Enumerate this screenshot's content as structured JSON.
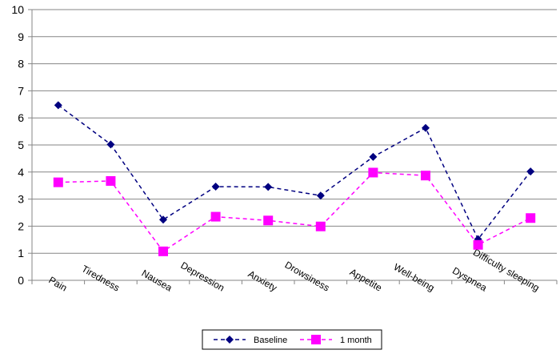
{
  "chart_data": {
    "type": "line",
    "title": "",
    "xlabel": "",
    "ylabel": "",
    "ylim": [
      0,
      10
    ],
    "yticks": [
      0,
      1,
      2,
      3,
      4,
      5,
      6,
      7,
      8,
      9,
      10
    ],
    "grid": true,
    "legend_position": "bottom",
    "categories": [
      "Pain",
      "Tiredness",
      "Nausea",
      "Depression",
      "Anxiety",
      "Drowsiness",
      "Appetite",
      "Well-being",
      "Dyspnea",
      "Difficulty sleeping"
    ],
    "series": [
      {
        "name": "Baseline",
        "color": "#000080",
        "marker": "diamond",
        "dash": "dashed",
        "values": [
          6.47,
          5.02,
          2.24,
          3.46,
          3.45,
          3.13,
          4.56,
          5.63,
          1.52,
          4.02
        ]
      },
      {
        "name": "1 month",
        "color": "#FF00FF",
        "marker": "square",
        "dash": "dashed",
        "values": [
          3.62,
          3.67,
          1.07,
          2.35,
          2.21,
          1.99,
          3.98,
          3.87,
          1.31,
          2.3
        ]
      }
    ]
  }
}
